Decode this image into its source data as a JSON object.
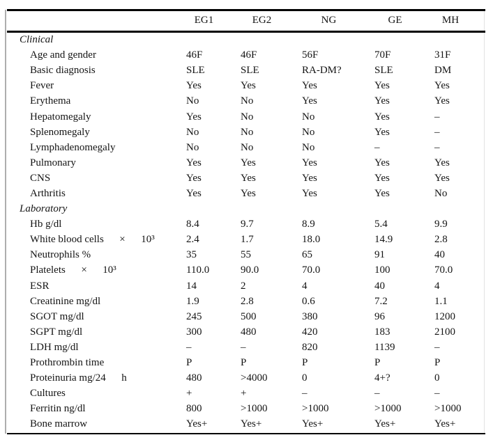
{
  "table": {
    "columns": [
      "EG1",
      "EG2",
      "NG",
      "GE",
      "MH"
    ],
    "colors": {
      "rule": "#000000",
      "text": "#141414",
      "edge_line": "#aeaeae",
      "background": "#ffffff"
    },
    "sections": [
      {
        "title": "Clinical",
        "rows": [
          {
            "label": "Age and gender",
            "values": [
              "46F",
              "46F",
              "56F",
              "70F",
              "31F"
            ]
          },
          {
            "label": "Basic diagnosis",
            "values": [
              "SLE",
              "SLE",
              "RA-DM?",
              "SLE",
              "DM"
            ]
          },
          {
            "label": "Fever",
            "values": [
              "Yes",
              "Yes",
              "Yes",
              "Yes",
              "Yes"
            ]
          },
          {
            "label": "Erythema",
            "values": [
              "No",
              "No",
              "Yes",
              "Yes",
              "Yes"
            ]
          },
          {
            "label": "Hepatomegaly",
            "values": [
              "Yes",
              "No",
              "No",
              "Yes",
              "–"
            ]
          },
          {
            "label": "Splenomegaly",
            "values": [
              "No",
              "No",
              "No",
              "Yes",
              "–"
            ]
          },
          {
            "label": "Lymphadenomegaly",
            "values": [
              "No",
              "No",
              "No",
              "–",
              "–"
            ]
          },
          {
            "label": "Pulmonary",
            "values": [
              "Yes",
              "Yes",
              "Yes",
              "Yes",
              "Yes"
            ]
          },
          {
            "label": "CNS",
            "values": [
              "Yes",
              "Yes",
              "Yes",
              "Yes",
              "Yes"
            ]
          },
          {
            "label": "Arthritis",
            "values": [
              "Yes",
              "Yes",
              "Yes",
              "Yes",
              "No"
            ]
          }
        ]
      },
      {
        "title": "Laboratory",
        "rows": [
          {
            "label": "Hb g/dl",
            "values": [
              "8.4",
              "9.7",
              "8.9",
              "5.4",
              "9.9"
            ]
          },
          {
            "label": "White blood cells  ×  10³",
            "values": [
              "2.4",
              "1.7",
              "18.0",
              "14.9",
              "2.8"
            ]
          },
          {
            "label": "Neutrophils %",
            "values": [
              "35",
              "55",
              "65",
              "91",
              "40"
            ]
          },
          {
            "label": "Platelets  ×  10³",
            "values": [
              "110.0",
              "90.0",
              "70.0",
              "100",
              "70.0"
            ]
          },
          {
            "label": "ESR",
            "values": [
              "14",
              "2",
              "4",
              "40",
              "4"
            ]
          },
          {
            "label": "Creatinine mg/dl",
            "values": [
              "1.9",
              "2.8",
              "0.6",
              "7.2",
              "1.1"
            ]
          },
          {
            "label": "SGOT mg/dl",
            "values": [
              "245",
              "500",
              "380",
              "96",
              "1200"
            ]
          },
          {
            "label": "SGPT mg/dl",
            "values": [
              "300",
              "480",
              "420",
              "183",
              "2100"
            ]
          },
          {
            "label": "LDH mg/dl",
            "values": [
              "–",
              "–",
              "820",
              "1139",
              "–"
            ]
          },
          {
            "label": "Prothrombin time",
            "values": [
              "P",
              "P",
              "P",
              "P",
              "P"
            ]
          },
          {
            "label": "Proteinuria mg/24  h",
            "values": [
              "480",
              ">4000",
              "0",
              "4+?",
              "0"
            ]
          },
          {
            "label": "Cultures",
            "values": [
              "+",
              "+",
              "–",
              "–",
              "–"
            ]
          },
          {
            "label": "Ferritin ng/dl",
            "values": [
              "800",
              ">1000",
              ">1000",
              ">1000",
              ">1000"
            ]
          },
          {
            "label": "Bone marrow",
            "values": [
              "Yes+",
              "Yes+",
              "Yes+",
              "Yes+",
              "Yes+"
            ]
          }
        ]
      }
    ]
  }
}
